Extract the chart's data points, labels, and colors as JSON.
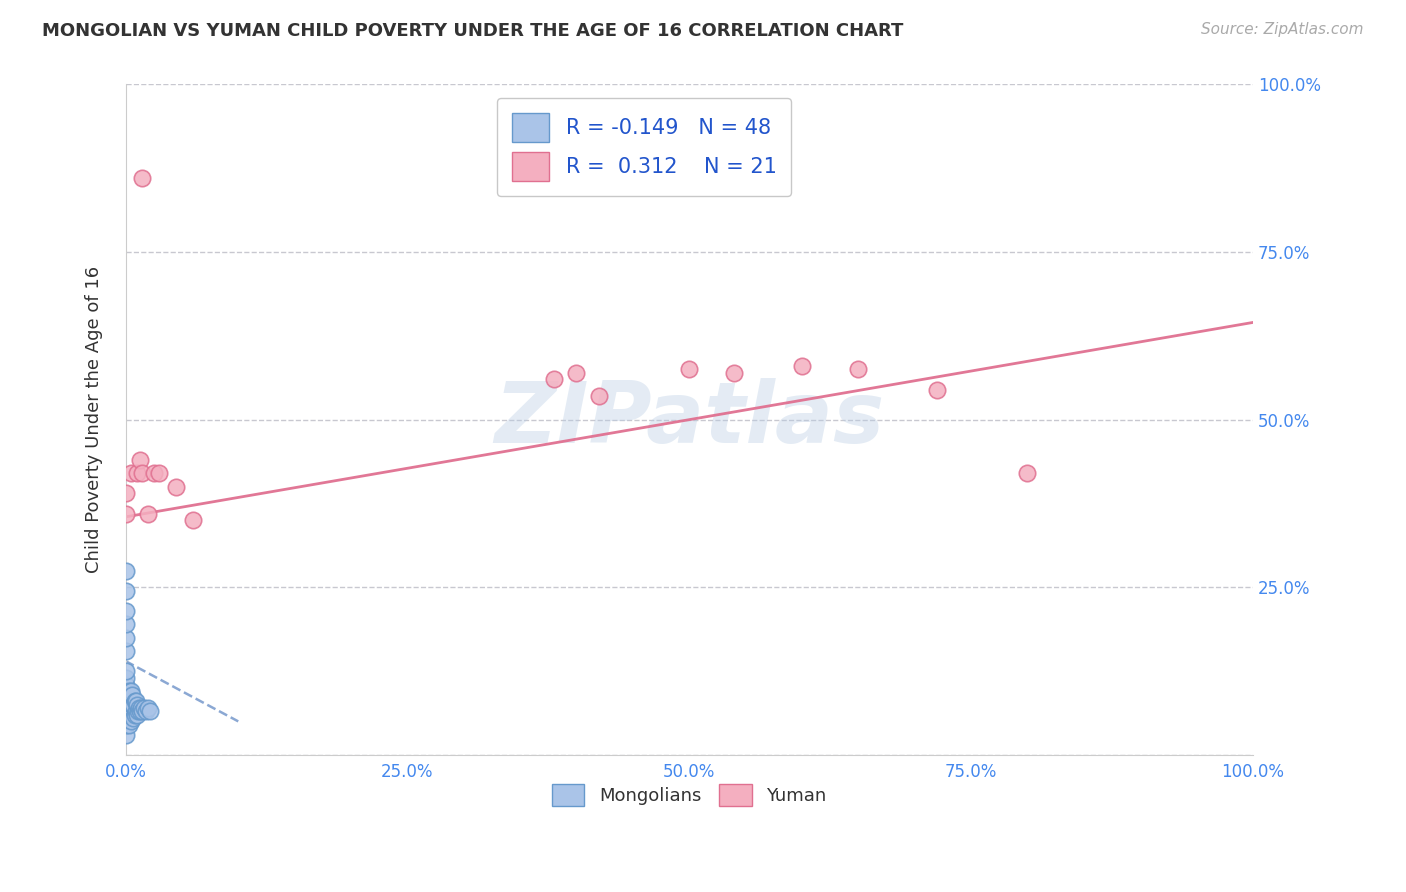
{
  "title": "MONGOLIAN VS YUMAN CHILD POVERTY UNDER THE AGE OF 16 CORRELATION CHART",
  "source": "Source: ZipAtlas.com",
  "ylabel": "Child Poverty Under the Age of 16",
  "xlim": [
    0.0,
    1.0
  ],
  "ylim": [
    0.0,
    1.0
  ],
  "xticks": [
    0.0,
    0.25,
    0.5,
    0.75,
    1.0
  ],
  "yticks": [
    0.0,
    0.25,
    0.5,
    0.75,
    1.0
  ],
  "xticklabels": [
    "0.0%",
    "25.0%",
    "50.0%",
    "75.0%",
    "100.0%"
  ],
  "yticklabels_right": [
    "",
    "25.0%",
    "50.0%",
    "75.0%",
    "100.0%"
  ],
  "mongolians_color": "#aac4e8",
  "yuman_color": "#f4afc0",
  "mongolians_edge": "#6699cc",
  "yuman_edge": "#e07090",
  "mongolians_line_color": "#7799cc",
  "yuman_line_color": "#e07090",
  "background_color": "#ffffff",
  "grid_color": "#c8c8d0",
  "legend_R_mongolians": "-0.149",
  "legend_N_mongolians": "48",
  "legend_R_yuman": "0.312",
  "legend_N_yuman": "21",
  "mongo_x": [
    0.0,
    0.0,
    0.0,
    0.0,
    0.0,
    0.0,
    0.0,
    0.0,
    0.0,
    0.0,
    0.0,
    0.0,
    0.0,
    0.0,
    0.0,
    0.0,
    0.002,
    0.002,
    0.003,
    0.003,
    0.003,
    0.003,
    0.004,
    0.004,
    0.005,
    0.005,
    0.005,
    0.005,
    0.006,
    0.006,
    0.006,
    0.007,
    0.007,
    0.008,
    0.008,
    0.009,
    0.009,
    0.01,
    0.01,
    0.011,
    0.012,
    0.013,
    0.014,
    0.015,
    0.016,
    0.018,
    0.02,
    0.022
  ],
  "mongo_y": [
    0.03,
    0.045,
    0.055,
    0.065,
    0.075,
    0.085,
    0.095,
    0.105,
    0.115,
    0.125,
    0.155,
    0.175,
    0.195,
    0.215,
    0.245,
    0.275,
    0.055,
    0.075,
    0.045,
    0.065,
    0.085,
    0.095,
    0.06,
    0.08,
    0.05,
    0.065,
    0.08,
    0.095,
    0.06,
    0.075,
    0.09,
    0.055,
    0.075,
    0.06,
    0.08,
    0.065,
    0.08,
    0.06,
    0.075,
    0.065,
    0.07,
    0.065,
    0.07,
    0.065,
    0.07,
    0.065,
    0.07,
    0.065
  ],
  "yuman_x": [
    0.0,
    0.0,
    0.005,
    0.01,
    0.013,
    0.015,
    0.015,
    0.02,
    0.025,
    0.03,
    0.045,
    0.06,
    0.38,
    0.4,
    0.42,
    0.5,
    0.54,
    0.6,
    0.65,
    0.72,
    0.8
  ],
  "yuman_y": [
    0.36,
    0.39,
    0.42,
    0.42,
    0.44,
    0.42,
    0.86,
    0.36,
    0.42,
    0.42,
    0.4,
    0.35,
    0.56,
    0.57,
    0.535,
    0.575,
    0.57,
    0.58,
    0.575,
    0.545,
    0.42
  ],
  "mongo_line_x": [
    0.0,
    0.1
  ],
  "mongo_line_y": [
    0.14,
    0.05
  ],
  "yuman_line_x": [
    0.0,
    1.0
  ],
  "yuman_line_y": [
    0.355,
    0.645
  ]
}
